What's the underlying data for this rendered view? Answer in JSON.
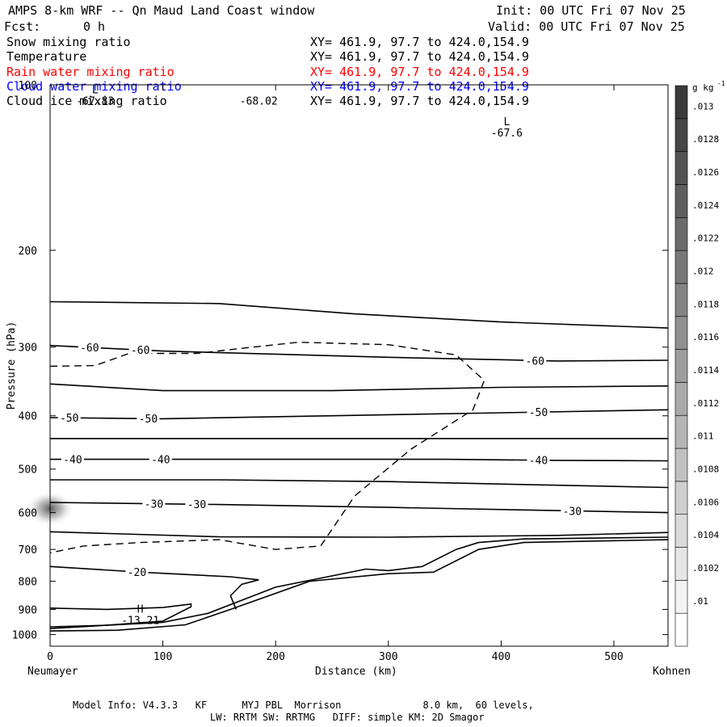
{
  "header": {
    "title": "AMPS 8-km WRF -- Qn Maud Land Coast window",
    "forecast_label": "Fcst:",
    "forecast_value": "0 h",
    "init": "Init: 00 UTC Fri 07 Nov 25",
    "valid": "Valid: 00 UTC Fri 07 Nov 25"
  },
  "fields": [
    {
      "name": "Snow mixing ratio",
      "range": "XY= 461.9, 97.7 to 424.0,154.9",
      "color": "#000000"
    },
    {
      "name": "Temperature",
      "range": "XY= 461.9, 97.7 to 424.0,154.9",
      "color": "#000000"
    },
    {
      "name": "Rain water mixing ratio",
      "range": "XY= 461.9, 97.7 to 424.0,154.9",
      "color": "#ff0000"
    },
    {
      "name": "Cloud water mixing ratio",
      "range": "XY= 461.9, 97.7 to 424.0,154.9",
      "color": "#0000ff"
    },
    {
      "name": "Cloud ice mixing ratio",
      "range": "XY= 461.9, 97.7 to 424.0,154.9",
      "color": "#000000"
    }
  ],
  "footer": {
    "line1": "Model Info: V4.3.3   KF      MYJ PBL  Morrison              8.0 km,  60 levels,",
    "line2": "LW: RRTM SW: RRTMG   DIFF: simple KM: 2D Smagor"
  },
  "chart_data": {
    "type": "contour",
    "xlabel": "Distance (km)",
    "ylabel": "Pressure (hPa)",
    "xlim": [
      0,
      548
    ],
    "ylim": [
      1050,
      100
    ],
    "y_scale": "log",
    "x_ticks": [
      0,
      100,
      200,
      300,
      400,
      500
    ],
    "y_ticks": [
      100,
      200,
      300,
      400,
      500,
      600,
      700,
      800,
      900,
      1000
    ],
    "x_endpoints": {
      "left": "Neumayer",
      "right": "Kohnen"
    },
    "colorbar": {
      "unit": "g kg",
      "unit_exponent": "-1",
      "labels": [
        ".01",
        ".0102",
        ".0104",
        ".0106",
        ".0108",
        ".011",
        ".0112",
        ".0114",
        ".0116",
        ".0118",
        ".012",
        ".0122",
        ".0124",
        ".0126",
        ".0128",
        ".013"
      ]
    },
    "extrema": [
      {
        "kind": "L",
        "label": "-67.83",
        "x": 40,
        "p": 105
      },
      {
        "kind": "",
        "label": "-68.02",
        "x": 185,
        "p": 105
      },
      {
        "kind": "L",
        "label": "-67.6",
        "x": 405,
        "p": 120
      },
      {
        "kind": "H",
        "label": "-13.21",
        "x": 80,
        "p": 925
      }
    ],
    "temperature_isotherms": [
      {
        "label": "",
        "points": [
          [
            0,
            248
          ],
          [
            150,
            250
          ],
          [
            270,
            261
          ],
          [
            400,
            270
          ],
          [
            548,
            277
          ]
        ]
      },
      {
        "label": "-60",
        "label_x": [
          35,
          80,
          430
        ],
        "points": [
          [
            0,
            298
          ],
          [
            100,
            305
          ],
          [
            300,
            313
          ],
          [
            450,
            318
          ],
          [
            548,
            317
          ]
        ]
      },
      {
        "label": "",
        "points": [
          [
            0,
            350
          ],
          [
            100,
            360
          ],
          [
            250,
            360
          ],
          [
            400,
            355
          ],
          [
            548,
            353
          ]
        ]
      },
      {
        "label": "-50",
        "label_x": [
          17,
          87,
          433
        ],
        "points": [
          [
            0,
            403
          ],
          [
            100,
            405
          ],
          [
            250,
            400
          ],
          [
            400,
            395
          ],
          [
            548,
            390
          ]
        ]
      },
      {
        "label": "",
        "points": [
          [
            0,
            440
          ],
          [
            548,
            440
          ]
        ]
      },
      {
        "label": "-40",
        "label_x": [
          20,
          98,
          433
        ],
        "points": [
          [
            0,
            480
          ],
          [
            100,
            480
          ],
          [
            350,
            480
          ],
          [
            450,
            482
          ],
          [
            548,
            483
          ]
        ]
      },
      {
        "label": "",
        "points": [
          [
            0,
            523
          ],
          [
            150,
            523
          ],
          [
            300,
            527
          ],
          [
            450,
            535
          ],
          [
            548,
            540
          ]
        ]
      },
      {
        "label": "-30",
        "label_x": [
          92,
          130,
          463
        ],
        "points": [
          [
            0,
            575
          ],
          [
            150,
            580
          ],
          [
            300,
            587
          ],
          [
            450,
            595
          ],
          [
            548,
            600
          ]
        ]
      },
      {
        "label": "",
        "points": [
          [
            0,
            650
          ],
          [
            150,
            664
          ],
          [
            300,
            665
          ],
          [
            450,
            660
          ],
          [
            548,
            652
          ]
        ]
      },
      {
        "label": "-20",
        "label_x": [
          77
        ],
        "points": [
          [
            0,
            752
          ],
          [
            80,
            770
          ],
          [
            160,
            785
          ],
          [
            185,
            795
          ],
          [
            170,
            810
          ],
          [
            160,
            850
          ],
          [
            165,
            900
          ]
        ]
      }
    ],
    "terrain_lines": [
      {
        "points": [
          [
            0,
            968
          ],
          [
            50,
            962
          ],
          [
            100,
            950
          ],
          [
            140,
            915
          ],
          [
            200,
            820
          ],
          [
            280,
            760
          ],
          [
            300,
            765
          ],
          [
            330,
            752
          ],
          [
            360,
            700
          ],
          [
            380,
            680
          ],
          [
            420,
            670
          ],
          [
            548,
            665
          ]
        ]
      },
      {
        "points": [
          [
            0,
            985
          ],
          [
            60,
            982
          ],
          [
            120,
            960
          ],
          [
            160,
            900
          ],
          [
            230,
            800
          ],
          [
            300,
            775
          ],
          [
            340,
            770
          ],
          [
            380,
            700
          ],
          [
            420,
            680
          ],
          [
            548,
            672
          ]
        ]
      },
      {
        "points": [
          [
            0,
            895
          ],
          [
            50,
            900
          ],
          [
            100,
            893
          ],
          [
            125,
            880
          ],
          [
            125,
            890
          ],
          [
            100,
            945
          ],
          [
            40,
            965
          ],
          [
            0,
            975
          ]
        ]
      }
    ],
    "ice_outline": [
      [
        0,
        325
      ],
      [
        40,
        324
      ],
      [
        70,
        308
      ],
      [
        130,
        308
      ],
      [
        180,
        300
      ],
      [
        220,
        294
      ],
      [
        300,
        297
      ],
      [
        360,
        310
      ],
      [
        385,
        345
      ],
      [
        375,
        390
      ],
      [
        320,
        460
      ],
      [
        270,
        560
      ],
      [
        240,
        690
      ],
      [
        200,
        700
      ],
      [
        150,
        672
      ],
      [
        80,
        680
      ],
      [
        30,
        690
      ],
      [
        0,
        710
      ]
    ],
    "snow_shading": {
      "x": 0,
      "p": 590,
      "max_value": ".0116"
    }
  }
}
